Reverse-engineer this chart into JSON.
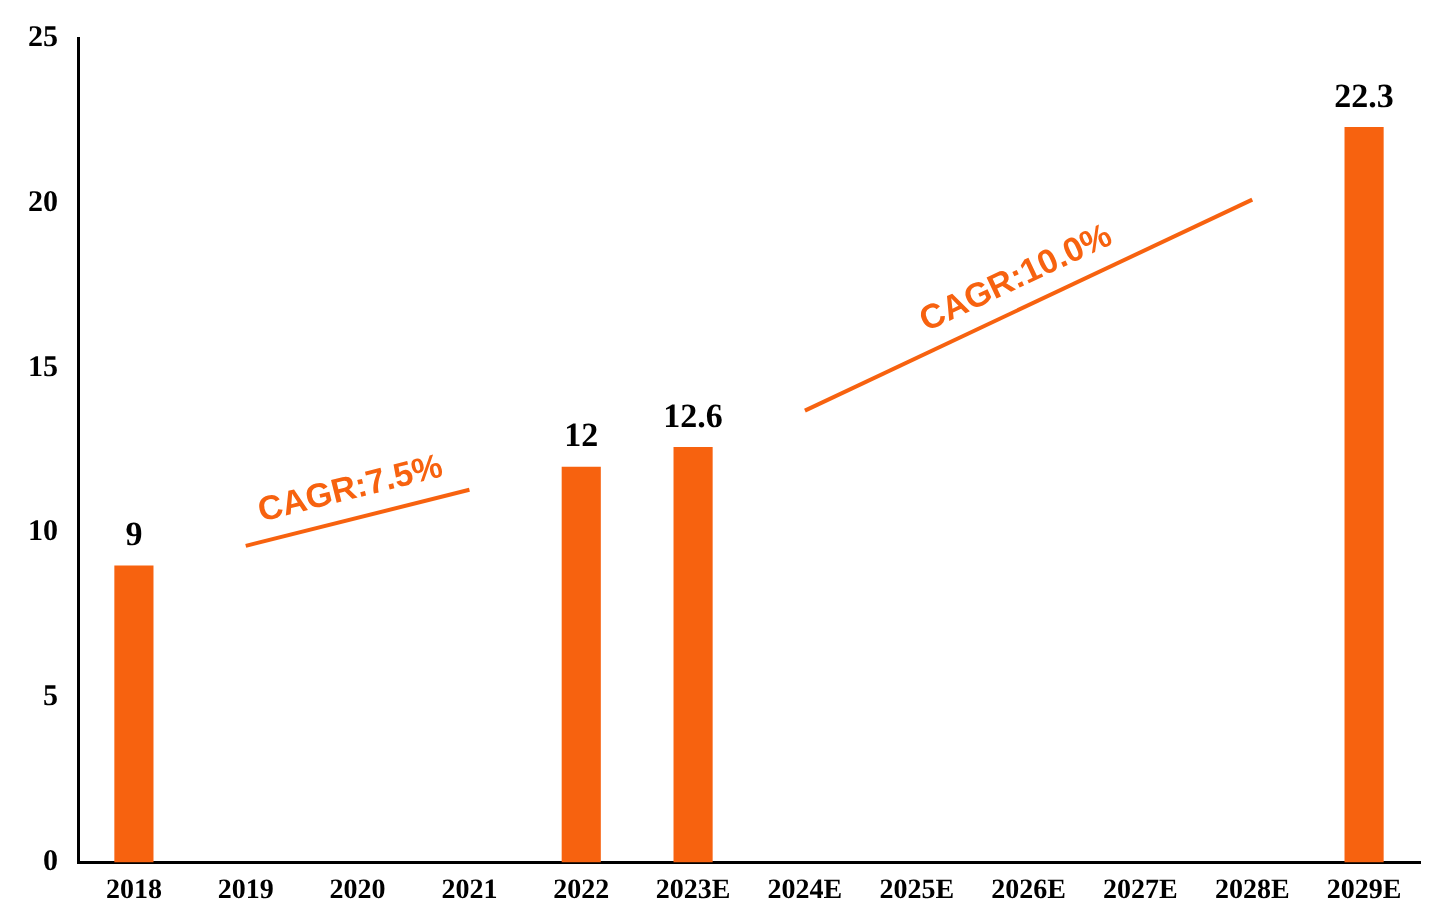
{
  "chart_data": {
    "type": "bar",
    "categories": [
      "2018",
      "2019",
      "2020",
      "2021",
      "2022",
      "2023E",
      "2024E",
      "2025E",
      "2026E",
      "2027E",
      "2028E",
      "2029E"
    ],
    "series": [
      {
        "color": "#f7620f",
        "values": [
          9,
          null,
          null,
          null,
          12,
          12.6,
          null,
          null,
          null,
          null,
          null,
          22.3
        ],
        "value_labels": [
          "9",
          null,
          null,
          null,
          "12",
          "12.6",
          null,
          null,
          null,
          null,
          null,
          "22.3"
        ]
      },
      {
        "type": "line",
        "color": "#f7620f",
        "values": [
          null,
          9.6,
          null,
          11.3,
          null,
          null,
          null,
          null,
          null,
          null,
          null,
          null
        ]
      },
      {
        "type": "line",
        "color": "#f7620f",
        "values": [
          null,
          null,
          null,
          null,
          null,
          null,
          13.7,
          null,
          null,
          null,
          20.1,
          null
        ]
      }
    ],
    "ylim": [
      0,
      25
    ],
    "yticks": [
      0,
      5,
      10,
      15,
      20,
      25
    ],
    "grid": false,
    "legend": false,
    "marker": "none",
    "annotations": [
      "CAGR:7.5%",
      "CAGR:10.0%"
    ]
  }
}
